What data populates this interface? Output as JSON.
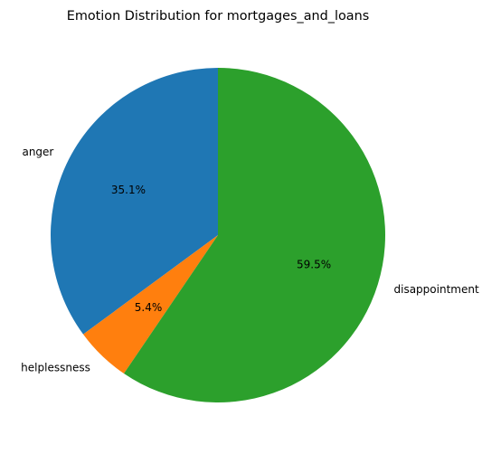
{
  "chart_data": {
    "type": "pie",
    "title": "Emotion Distribution for mortgages_and_loans",
    "start_angle_deg": 90,
    "direction": "counterclockwise",
    "slices": [
      {
        "label": "anger",
        "value": 35.1,
        "pct_label": "35.1%",
        "color": "#1f77b4"
      },
      {
        "label": "helplessness",
        "value": 5.4,
        "pct_label": "5.4%",
        "color": "#ff7f0e"
      },
      {
        "label": "disappointment",
        "value": 59.5,
        "pct_label": "59.5%",
        "color": "#2ca02c"
      }
    ]
  }
}
